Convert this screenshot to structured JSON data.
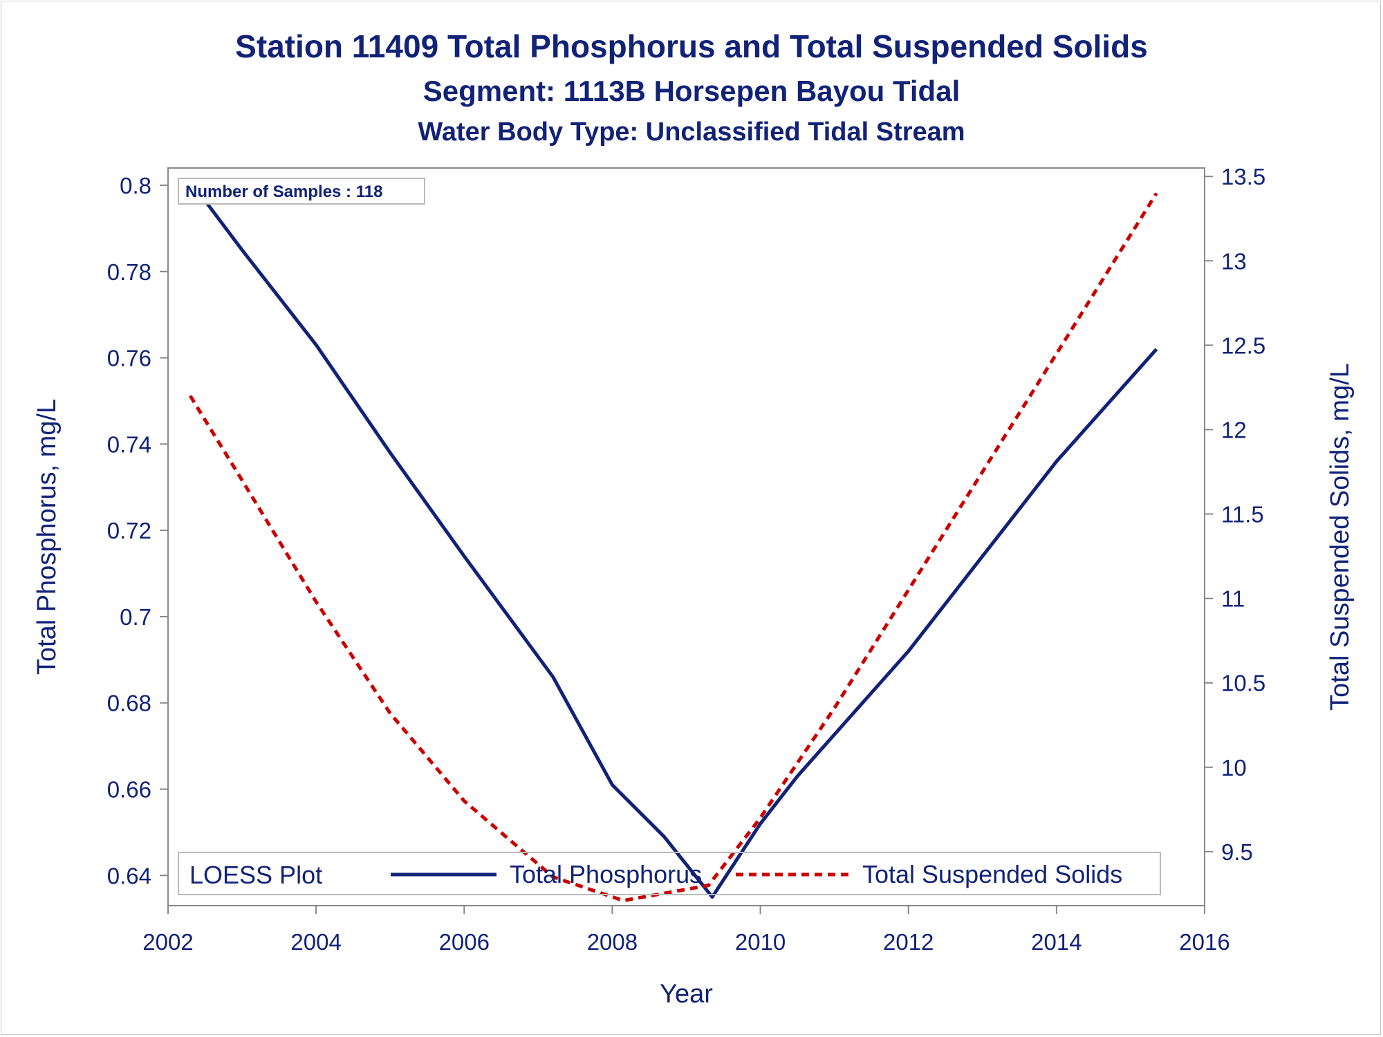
{
  "titles": {
    "line1": "Station 11409  Total Phosphorus and Total Suspended Solids",
    "line2": "Segment: 1113B  Horsepen Bayou Tidal",
    "line3": "Water Body Type: Unclassified Tidal Stream"
  },
  "inset": {
    "text": "Number of Samples : 118"
  },
  "legend": {
    "title": "LOESS Plot",
    "items": [
      "Total Phosphorus",
      "Total Suspended Solids"
    ]
  },
  "colors": {
    "text": "#112277",
    "phosphorus": "#112277",
    "tss": "#cc0000",
    "axis": "#888888"
  },
  "chart_data": {
    "type": "line",
    "xlabel": "Year",
    "ylabel": "Total Phosphorus, mg/L",
    "y2label": "Total Suspended Solids, mg/L",
    "xlim": [
      2002,
      2016
    ],
    "ylim": [
      0.633,
      0.804
    ],
    "y2lim": [
      9.18,
      13.55
    ],
    "xticks": [
      "2002",
      "2004",
      "2006",
      "2008",
      "2010",
      "2012",
      "2014",
      "2016"
    ],
    "yticks": [
      "0.64",
      "0.66",
      "0.68",
      "0.7",
      "0.72",
      "0.74",
      "0.76",
      "0.78",
      "0.8"
    ],
    "y2ticks": [
      "9.5",
      "10",
      "10.5",
      "11",
      "11.5",
      "12",
      "12.5",
      "13",
      "13.5"
    ],
    "legend_position": "bottom-inside",
    "grid": false,
    "series": [
      {
        "name": "Total Phosphorus",
        "axis": "left",
        "style": "solid",
        "x": [
          2002.3,
          2003.0,
          2004.0,
          2005.0,
          2006.0,
          2007.2,
          2008.0,
          2008.7,
          2009.35,
          2010.0,
          2010.5,
          2012.0,
          2014.0,
          2015.35
        ],
        "y": [
          0.801,
          0.785,
          0.763,
          0.738,
          0.714,
          0.686,
          0.661,
          0.649,
          0.635,
          0.652,
          0.663,
          0.692,
          0.736,
          0.762
        ]
      },
      {
        "name": "Total Suspended Solids",
        "axis": "right",
        "style": "dashed",
        "x": [
          2002.3,
          2003.0,
          2004.0,
          2005.0,
          2006.0,
          2007.2,
          2008.15,
          2009.3,
          2010.0,
          2011.0,
          2012.0,
          2013.0,
          2014.0,
          2015.35
        ],
        "y": [
          12.2,
          11.7,
          10.98,
          10.32,
          9.8,
          9.35,
          9.21,
          9.3,
          9.7,
          10.35,
          11.05,
          11.75,
          12.45,
          13.4
        ]
      }
    ]
  }
}
